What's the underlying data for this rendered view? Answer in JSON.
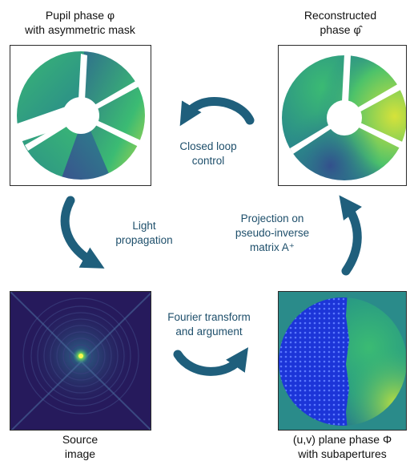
{
  "captions": {
    "pupil_phase": [
      "Pupil phase φ",
      "with asymmetric mask"
    ],
    "reconstructed_phase": [
      "Reconstructed",
      "phase φ̂"
    ],
    "source_image": [
      "Source",
      "image"
    ],
    "uv_plane": [
      "(u,v) plane phase Φ",
      "with subapertures"
    ]
  },
  "steps": {
    "closed_loop": [
      "Closed loop",
      "control"
    ],
    "light_propagation": [
      "Light",
      "propagation"
    ],
    "projection": [
      "Projection on",
      "pseudo-inverse",
      "matrix A⁺"
    ],
    "fourier": [
      "Fourier transform",
      "and argument"
    ]
  },
  "colors": {
    "arrow": "#1f5f7c",
    "step_text": "#1e4f6b",
    "viridis_dark": "#2f5f8a",
    "viridis_teal": "#2a8b8a",
    "viridis_green": "#3bbb73",
    "viridis_yellow": "#d6e23a",
    "source_background": "#261a5c",
    "subaperture_blue": "#1c35d8"
  }
}
